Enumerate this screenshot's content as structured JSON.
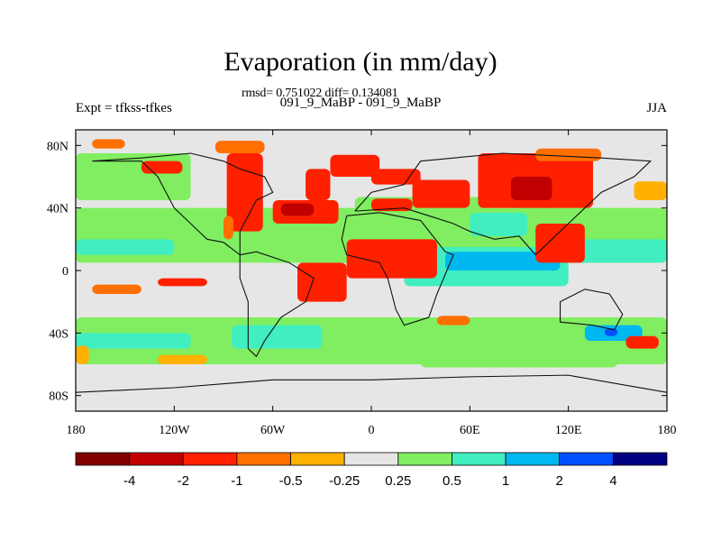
{
  "title": "Evaporation (in mm/day)",
  "stats": "rmsd= 0.751022 diff= 0.134081",
  "subtitle": "091_9_MaBP - 091_9_MaBP",
  "expt_label": "Expt = tfkss-tfkes",
  "season": "JJA",
  "map": {
    "lon_range": [
      -180,
      180
    ],
    "lat_range": [
      -90,
      90
    ],
    "x_ticks": [
      {
        "lon": -180,
        "label": "180"
      },
      {
        "lon": -120,
        "label": "120W"
      },
      {
        "lon": -60,
        "label": "60W"
      },
      {
        "lon": 0,
        "label": "0"
      },
      {
        "lon": 60,
        "label": "60E"
      },
      {
        "lon": 120,
        "label": "120E"
      },
      {
        "lon": 180,
        "label": "180"
      }
    ],
    "y_ticks": [
      {
        "lat": 80,
        "label": "80N"
      },
      {
        "lat": 40,
        "label": "40N"
      },
      {
        "lat": 0,
        "label": "0"
      },
      {
        "lat": -40,
        "label": "40S"
      },
      {
        "lat": -80,
        "label": "80S"
      }
    ]
  },
  "colorbar": {
    "colors": [
      "#800000",
      "#c00000",
      "#ff2000",
      "#ff7000",
      "#ffb000",
      "#e6e6e6",
      "#80ee60",
      "#40eec0",
      "#00b8f0",
      "#0050ff",
      "#000080"
    ],
    "labels": [
      "-4",
      "-2",
      "-1",
      "-0.5",
      "-0.25",
      "0.25",
      "0.5",
      "1",
      "2",
      "4"
    ]
  },
  "regions": [
    {
      "color": "#e6e6e6",
      "lon": -180,
      "lat": -90,
      "w": 360,
      "h": 180
    },
    {
      "color": "#80ee60",
      "lon": -180,
      "lat": 45,
      "w": 70,
      "h": 30
    },
    {
      "color": "#80ee60",
      "lon": -180,
      "lat": -60,
      "w": 360,
      "h": 30
    },
    {
      "color": "#80ee60",
      "lon": -180,
      "lat": 5,
      "w": 360,
      "h": 35
    },
    {
      "color": "#80ee60",
      "lon": -10,
      "lat": 35,
      "w": 80,
      "h": 12
    },
    {
      "color": "#40eec0",
      "lon": -180,
      "lat": 10,
      "w": 60,
      "h": 10
    },
    {
      "color": "#40eec0",
      "lon": -180,
      "lat": -50,
      "w": 70,
      "h": 10
    },
    {
      "color": "#40eec0",
      "lon": -85,
      "lat": -50,
      "w": 55,
      "h": 15
    },
    {
      "color": "#40eec0",
      "lon": 20,
      "lat": -10,
      "w": 100,
      "h": 25
    },
    {
      "color": "#00b8f0",
      "lon": 45,
      "lat": 0,
      "w": 70,
      "h": 12
    },
    {
      "color": "#40eec0",
      "lon": 60,
      "lat": 22,
      "w": 35,
      "h": 15
    },
    {
      "color": "#40eec0",
      "lon": 120,
      "lat": 5,
      "w": 60,
      "h": 15
    },
    {
      "color": "#00b8f0",
      "lon": 130,
      "lat": -45,
      "w": 35,
      "h": 10
    },
    {
      "color": "#0050ff",
      "lon": 142,
      "lat": -42,
      "w": 8,
      "h": 5
    },
    {
      "color": "#0050ff",
      "lon": -22,
      "lat": -5,
      "w": 4,
      "h": 6
    },
    {
      "color": "#80ee60",
      "lon": 30,
      "lat": -62,
      "w": 120,
      "h": 12
    },
    {
      "color": "#ff7000",
      "lon": -170,
      "lat": 78,
      "w": 20,
      "h": 6
    },
    {
      "color": "#ff2000",
      "lon": -140,
      "lat": 62,
      "w": 25,
      "h": 8
    },
    {
      "color": "#ff7000",
      "lon": -95,
      "lat": 75,
      "w": 30,
      "h": 8
    },
    {
      "color": "#ff2000",
      "lon": -88,
      "lat": 25,
      "w": 22,
      "h": 50
    },
    {
      "color": "#ff7000",
      "lon": -90,
      "lat": 20,
      "w": 6,
      "h": 15
    },
    {
      "color": "#ff2000",
      "lon": -60,
      "lat": 30,
      "w": 40,
      "h": 15
    },
    {
      "color": "#c00000",
      "lon": -55,
      "lat": 35,
      "w": 20,
      "h": 8
    },
    {
      "color": "#ff2000",
      "lon": -40,
      "lat": 45,
      "w": 15,
      "h": 20
    },
    {
      "color": "#ff2000",
      "lon": -25,
      "lat": 60,
      "w": 30,
      "h": 14
    },
    {
      "color": "#ff2000",
      "lon": 0,
      "lat": 55,
      "w": 30,
      "h": 10
    },
    {
      "color": "#ff2000",
      "lon": 25,
      "lat": 40,
      "w": 35,
      "h": 18
    },
    {
      "color": "#ff2000",
      "lon": 0,
      "lat": 38,
      "w": 25,
      "h": 8
    },
    {
      "color": "#ff2000",
      "lon": 65,
      "lat": 40,
      "w": 70,
      "h": 35
    },
    {
      "color": "#c00000",
      "lon": 85,
      "lat": 45,
      "w": 25,
      "h": 15
    },
    {
      "color": "#ff7000",
      "lon": 100,
      "lat": 70,
      "w": 40,
      "h": 8
    },
    {
      "color": "#ffb000",
      "lon": 160,
      "lat": 45,
      "w": 20,
      "h": 12
    },
    {
      "color": "#ff2000",
      "lon": 100,
      "lat": 5,
      "w": 30,
      "h": 25
    },
    {
      "color": "#ff2000",
      "lon": -15,
      "lat": -5,
      "w": 55,
      "h": 25
    },
    {
      "color": "#ff2000",
      "lon": -45,
      "lat": -20,
      "w": 30,
      "h": 25
    },
    {
      "color": "#ff2000",
      "lon": -130,
      "lat": -10,
      "w": 30,
      "h": 5
    },
    {
      "color": "#ff7000",
      "lon": -170,
      "lat": -15,
      "w": 30,
      "h": 6
    },
    {
      "color": "#ffb000",
      "lon": -180,
      "lat": -60,
      "w": 8,
      "h": 12
    },
    {
      "color": "#ff2000",
      "lon": 155,
      "lat": -50,
      "w": 20,
      "h": 8
    },
    {
      "color": "#ff7000",
      "lon": 40,
      "lat": -35,
      "w": 20,
      "h": 6
    },
    {
      "color": "#ffb000",
      "lon": -130,
      "lat": -60,
      "w": 30,
      "h": 6
    }
  ],
  "land_outlines": [
    [
      [
        -170,
        70
      ],
      [
        -140,
        70
      ],
      [
        -130,
        60
      ],
      [
        -125,
        50
      ],
      [
        -120,
        40
      ],
      [
        -110,
        30
      ],
      [
        -100,
        20
      ],
      [
        -90,
        18
      ],
      [
        -80,
        10
      ],
      [
        -80,
        25
      ],
      [
        -75,
        35
      ],
      [
        -70,
        45
      ],
      [
        -60,
        50
      ],
      [
        -65,
        60
      ],
      [
        -80,
        65
      ],
      [
        -90,
        70
      ],
      [
        -110,
        75
      ],
      [
        -140,
        72
      ],
      [
        -170,
        70
      ]
    ],
    [
      [
        -80,
        10
      ],
      [
        -70,
        12
      ],
      [
        -50,
        5
      ],
      [
        -35,
        -5
      ],
      [
        -40,
        -20
      ],
      [
        -55,
        -30
      ],
      [
        -65,
        -45
      ],
      [
        -70,
        -55
      ],
      [
        -75,
        -50
      ],
      [
        -75,
        -20
      ],
      [
        -80,
        -5
      ],
      [
        -80,
        10
      ]
    ],
    [
      [
        -15,
        35
      ],
      [
        5,
        37
      ],
      [
        30,
        32
      ],
      [
        45,
        12
      ],
      [
        50,
        10
      ],
      [
        40,
        -15
      ],
      [
        35,
        -30
      ],
      [
        20,
        -35
      ],
      [
        15,
        -25
      ],
      [
        10,
        -5
      ],
      [
        5,
        5
      ],
      [
        -15,
        10
      ],
      [
        -18,
        20
      ],
      [
        -15,
        35
      ]
    ],
    [
      [
        -10,
        38
      ],
      [
        0,
        50
      ],
      [
        20,
        55
      ],
      [
        30,
        70
      ],
      [
        80,
        75
      ],
      [
        140,
        72
      ],
      [
        170,
        70
      ],
      [
        160,
        60
      ],
      [
        140,
        50
      ],
      [
        130,
        40
      ],
      [
        120,
        30
      ],
      [
        110,
        20
      ],
      [
        100,
        10
      ],
      [
        90,
        22
      ],
      [
        75,
        20
      ],
      [
        60,
        25
      ],
      [
        50,
        30
      ],
      [
        35,
        35
      ],
      [
        20,
        40
      ],
      [
        -10,
        38
      ]
    ],
    [
      [
        115,
        -20
      ],
      [
        130,
        -12
      ],
      [
        145,
        -15
      ],
      [
        153,
        -28
      ],
      [
        148,
        -38
      ],
      [
        135,
        -35
      ],
      [
        115,
        -33
      ],
      [
        115,
        -20
      ]
    ],
    [
      [
        -180,
        -78
      ],
      [
        -120,
        -75
      ],
      [
        -60,
        -70
      ],
      [
        0,
        -70
      ],
      [
        60,
        -68
      ],
      [
        120,
        -67
      ],
      [
        180,
        -78
      ]
    ]
  ]
}
